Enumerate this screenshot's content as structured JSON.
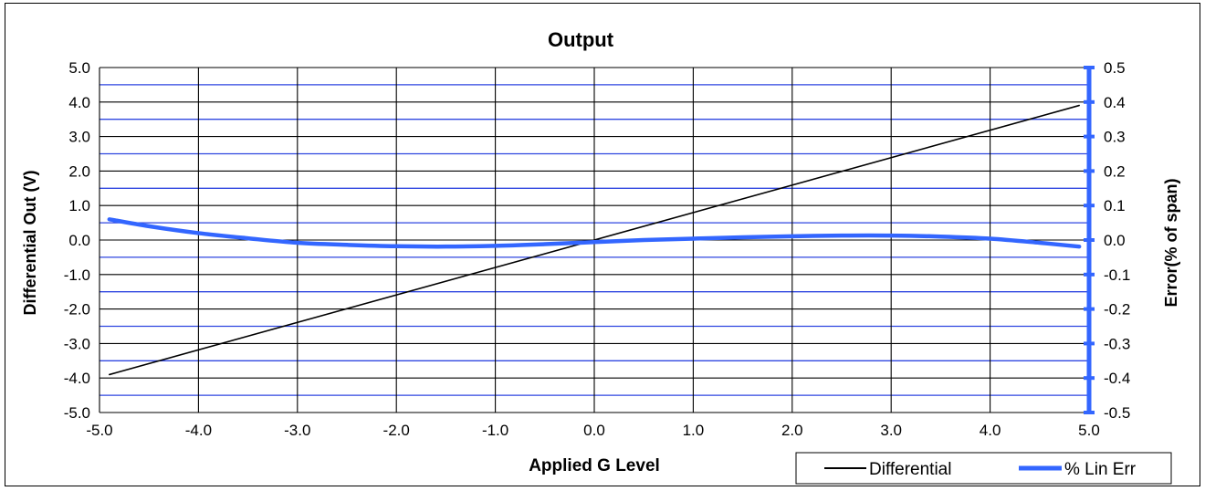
{
  "chart_data": {
    "type": "line",
    "title": "Output",
    "xlabel": "Applied G Level",
    "ylabel": "Differential  Out (V)",
    "y2label": "Error(% of span)",
    "xlim": [
      -5.0,
      5.0
    ],
    "ylim": [
      -5.0,
      5.0
    ],
    "y2lim": [
      -0.5,
      0.5
    ],
    "x_ticks": [
      "-5.0",
      "-4.0",
      "-3.0",
      "-2.0",
      "-1.0",
      "0.0",
      "1.0",
      "2.0",
      "3.0",
      "4.0",
      "5.0"
    ],
    "y_ticks": [
      "5.0",
      "4.0",
      "3.0",
      "2.0",
      "1.0",
      "0.0",
      "-1.0",
      "-2.0",
      "-3.0",
      "-4.0",
      "-5.0"
    ],
    "y2_ticks": [
      "0.5",
      "0.4",
      "0.3",
      "0.2",
      "0.1",
      "0.0",
      "-0.1",
      "-0.2",
      "-0.3",
      "-0.4",
      "-0.5"
    ],
    "grid": true,
    "legend_position": "bottom-right",
    "series": [
      {
        "name": "Differential",
        "axis": "left",
        "color": "#000000",
        "x": [
          -4.9,
          4.9
        ],
        "y": [
          -3.9,
          3.9
        ]
      },
      {
        "name": "% Lin Err",
        "axis": "right",
        "color": "#3366ff",
        "x": [
          -4.9,
          -4.5,
          -4.0,
          -3.5,
          -3.0,
          -2.5,
          -2.0,
          -1.5,
          -1.0,
          -0.5,
          0.0,
          0.5,
          1.0,
          1.5,
          2.0,
          2.5,
          3.0,
          3.5,
          4.0,
          4.5,
          4.9
        ],
        "y": [
          0.06,
          0.04,
          0.02,
          0.005,
          -0.008,
          -0.014,
          -0.018,
          -0.019,
          -0.017,
          -0.012,
          -0.006,
          0.0,
          0.004,
          0.008,
          0.011,
          0.013,
          0.013,
          0.01,
          0.004,
          -0.008,
          -0.019
        ]
      }
    ]
  }
}
